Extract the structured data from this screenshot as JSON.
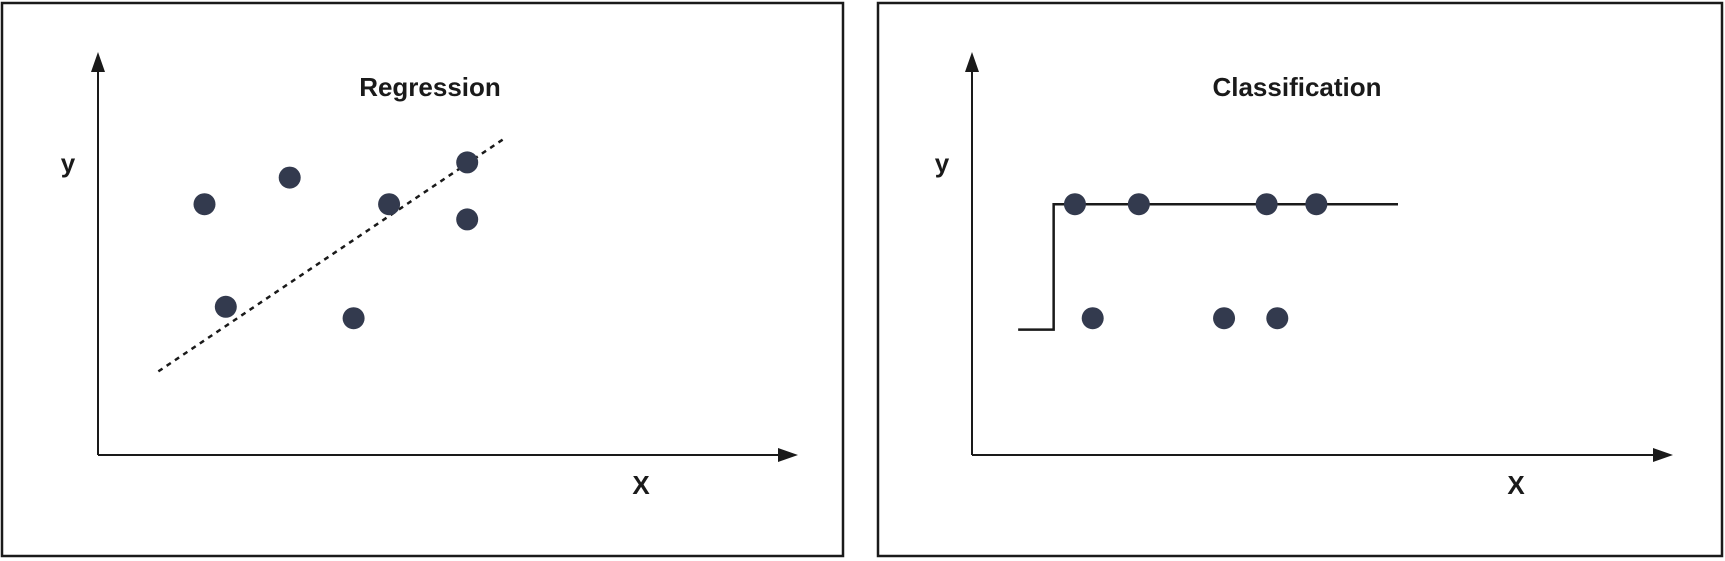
{
  "colors": {
    "point": "#333a4e",
    "line": "#1a1a1a"
  },
  "panels": [
    {
      "id": "regression",
      "title": "Regression",
      "xlabel": "X",
      "ylabel": "y",
      "points": [
        {
          "x": 1.5,
          "y": 6.6
        },
        {
          "x": 2.7,
          "y": 7.3
        },
        {
          "x": 1.8,
          "y": 3.9
        },
        {
          "x": 3.6,
          "y": 3.6
        },
        {
          "x": 4.1,
          "y": 6.6
        },
        {
          "x": 5.2,
          "y": 7.7
        },
        {
          "x": 5.2,
          "y": 6.2
        }
      ],
      "fit_line": {
        "style": "dashed",
        "from": {
          "x": 0.85,
          "y": 2.2
        },
        "to": {
          "x": 5.7,
          "y": 8.3
        }
      }
    },
    {
      "id": "classification",
      "title": "Classification",
      "xlabel": "X",
      "ylabel": "y",
      "points": [
        {
          "x": 1.45,
          "y": 6.6
        },
        {
          "x": 2.35,
          "y": 6.6
        },
        {
          "x": 4.15,
          "y": 6.6
        },
        {
          "x": 4.85,
          "y": 6.6
        },
        {
          "x": 1.7,
          "y": 3.6
        },
        {
          "x": 3.55,
          "y": 3.6
        },
        {
          "x": 4.3,
          "y": 3.6
        }
      ],
      "step_line": {
        "low": 3.3,
        "high": 6.6,
        "x_start": 0.65,
        "x_step": 1.15,
        "x_end": 6.0
      }
    }
  ]
}
